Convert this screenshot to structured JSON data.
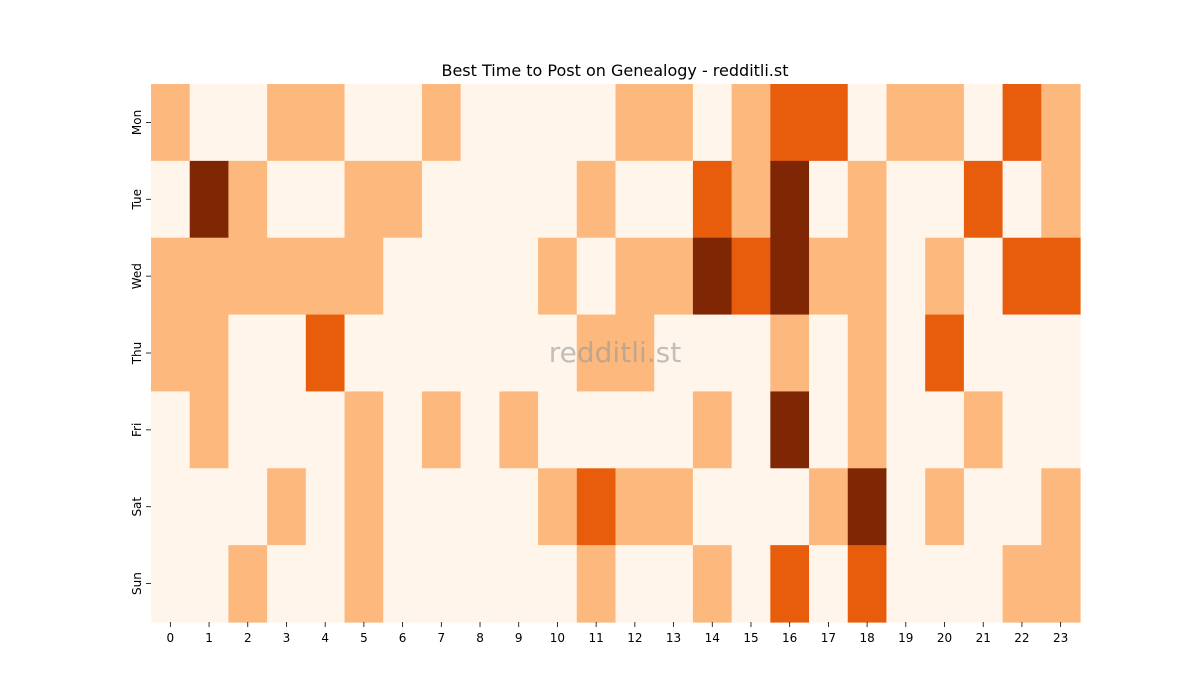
{
  "chart_data": {
    "type": "heatmap",
    "title": "Best Time to Post on Genealogy - redditli.st",
    "watermark": "redditli.st",
    "xlabel": "",
    "ylabel": "",
    "x_categories": [
      "0",
      "1",
      "2",
      "3",
      "4",
      "5",
      "6",
      "7",
      "8",
      "9",
      "10",
      "11",
      "12",
      "13",
      "14",
      "15",
      "16",
      "17",
      "18",
      "19",
      "20",
      "21",
      "22",
      "23"
    ],
    "y_categories": [
      "Mon",
      "Tue",
      "Wed",
      "Thu",
      "Fri",
      "Sat",
      "Sun"
    ],
    "levels": 4,
    "palette": [
      "#fff5eb",
      "#fdb97d",
      "#e85d0c",
      "#7f2704"
    ],
    "values": [
      [
        1,
        0,
        0,
        1,
        1,
        0,
        0,
        1,
        0,
        0,
        0,
        0,
        1,
        1,
        0,
        1,
        2,
        2,
        0,
        1,
        1,
        0,
        2,
        1
      ],
      [
        0,
        3,
        1,
        0,
        0,
        1,
        1,
        0,
        0,
        0,
        0,
        1,
        0,
        0,
        2,
        1,
        3,
        0,
        1,
        0,
        0,
        2,
        0,
        1
      ],
      [
        1,
        1,
        1,
        1,
        1,
        1,
        0,
        0,
        0,
        0,
        1,
        0,
        1,
        1,
        3,
        2,
        3,
        1,
        1,
        0,
        1,
        0,
        2,
        2
      ],
      [
        1,
        1,
        0,
        0,
        2,
        0,
        0,
        0,
        0,
        0,
        0,
        1,
        1,
        0,
        0,
        0,
        1,
        0,
        1,
        0,
        2,
        0,
        0,
        0
      ],
      [
        0,
        1,
        0,
        0,
        0,
        1,
        0,
        1,
        0,
        1,
        0,
        0,
        0,
        0,
        1,
        0,
        3,
        0,
        1,
        0,
        0,
        1,
        0,
        0
      ],
      [
        0,
        0,
        0,
        1,
        0,
        1,
        0,
        0,
        0,
        0,
        1,
        2,
        1,
        1,
        0,
        0,
        0,
        1,
        3,
        0,
        1,
        0,
        0,
        1
      ],
      [
        0,
        0,
        1,
        0,
        0,
        1,
        0,
        0,
        0,
        0,
        0,
        1,
        0,
        0,
        1,
        0,
        2,
        0,
        2,
        0,
        0,
        0,
        1,
        1
      ]
    ]
  }
}
